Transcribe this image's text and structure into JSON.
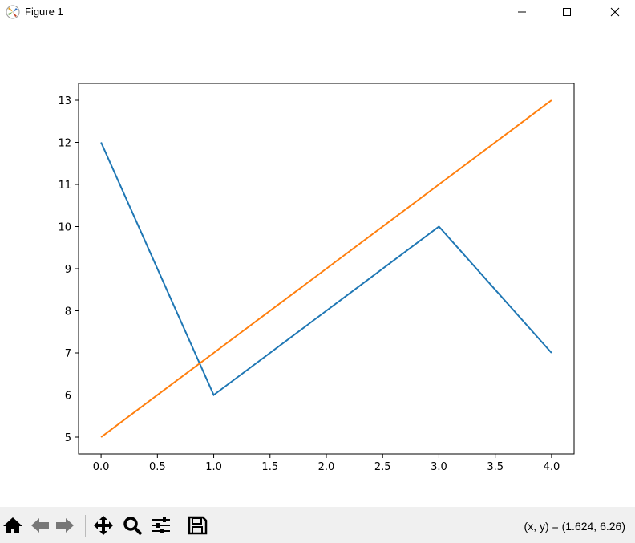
{
  "window": {
    "title": "Figure 1",
    "icon": "matplotlib-logo-icon",
    "controls": [
      "minimize-icon",
      "maximize-icon",
      "close-icon"
    ]
  },
  "toolbar": {
    "buttons": [
      "home-icon",
      "back-icon",
      "forward-icon",
      "pan-icon",
      "zoom-icon",
      "configure-subplots-icon",
      "save-icon"
    ],
    "coords": "(x, y) = (1.624, 6.26)"
  },
  "chart_data": {
    "type": "line",
    "x": [
      0,
      1,
      2,
      3,
      4
    ],
    "series": [
      {
        "values": [
          12,
          6,
          8,
          10,
          7
        ],
        "color": "#1f77b4"
      },
      {
        "values": [
          5,
          7,
          9,
          11,
          13
        ],
        "color": "#ff7f0e"
      }
    ],
    "xlim": [
      -0.2,
      4.2
    ],
    "ylim": [
      4.6,
      13.4
    ],
    "xticks": [
      "0.0",
      "0.5",
      "1.0",
      "1.5",
      "2.0",
      "2.5",
      "3.0",
      "3.5",
      "4.0"
    ],
    "yticks": [
      "5",
      "6",
      "7",
      "8",
      "9",
      "10",
      "11",
      "12",
      "13"
    ],
    "grid": false
  }
}
